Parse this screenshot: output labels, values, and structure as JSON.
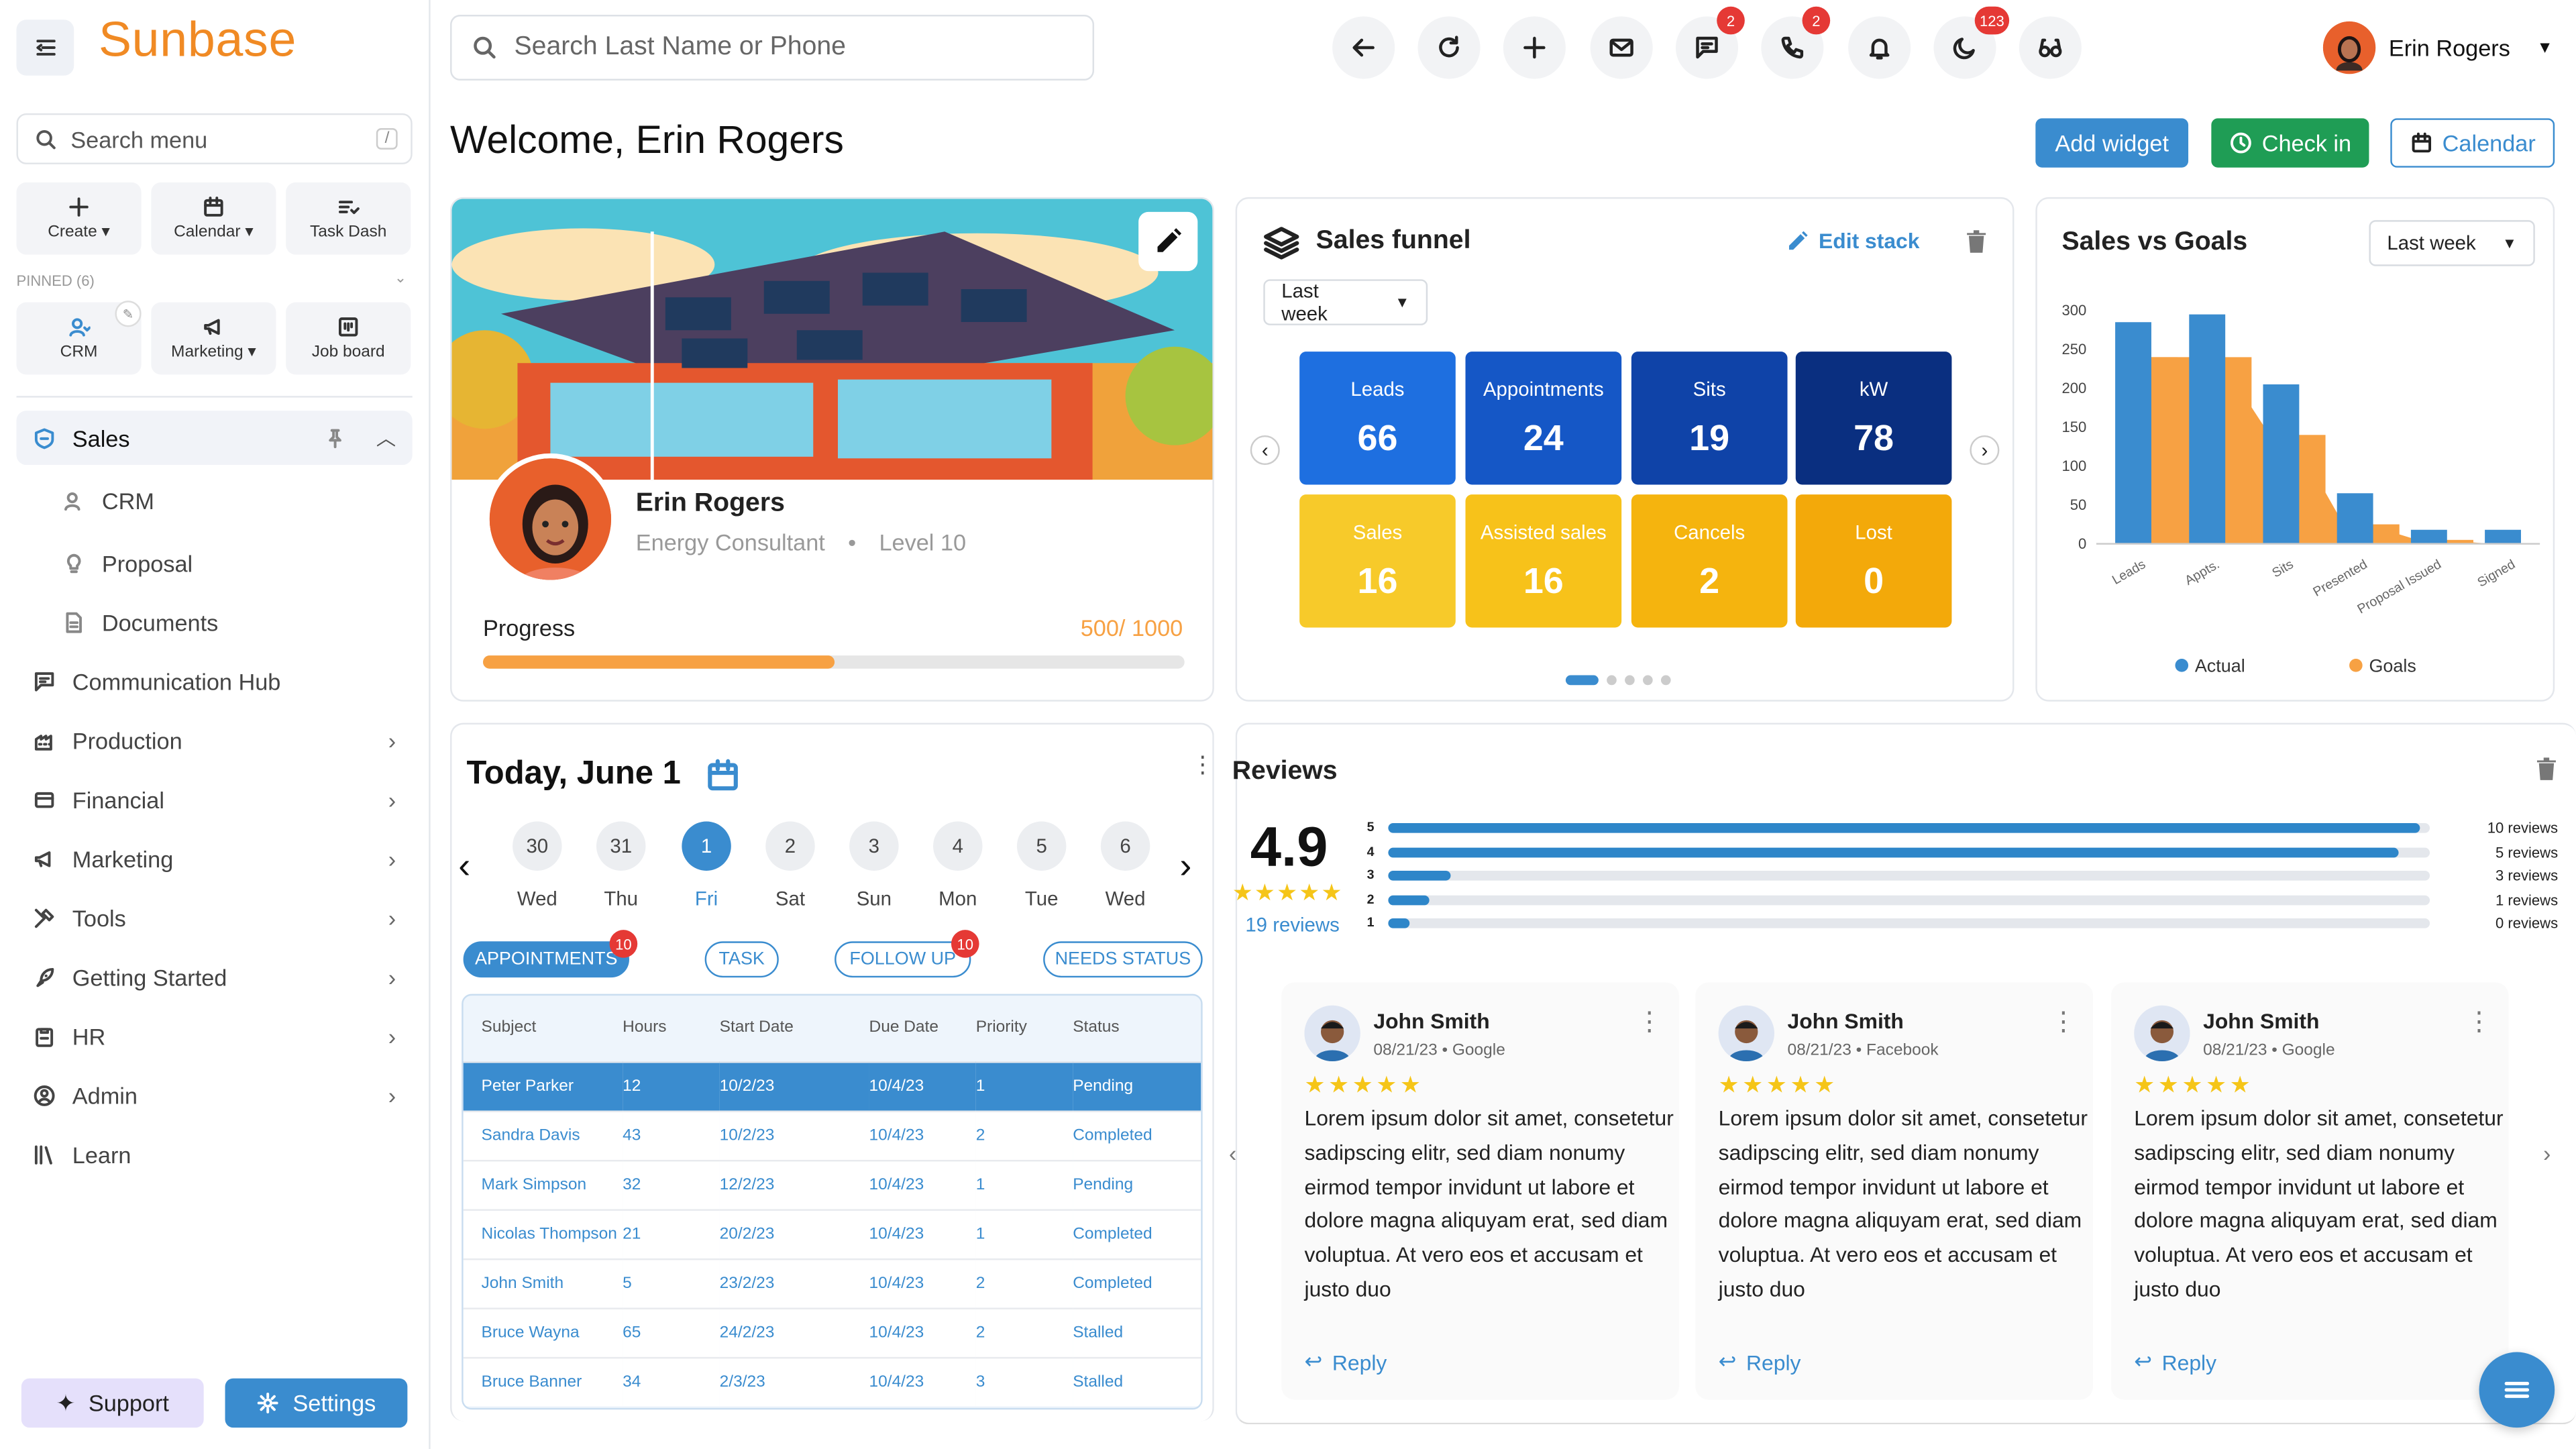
{
  "sidebar": {
    "logo": "Sunbase",
    "search_placeholder": "Search menu",
    "search_shortcut": "/",
    "quick": [
      {
        "label": "Create"
      },
      {
        "label": "Calendar"
      },
      {
        "label": "Task Dash"
      }
    ],
    "pinned_label": "PINNED (6)",
    "pinned": [
      {
        "label": "CRM"
      },
      {
        "label": "Marketing"
      },
      {
        "label": "Job board"
      }
    ],
    "nav": {
      "sales": "Sales",
      "crm": "CRM",
      "proposal": "Proposal",
      "documents": "Documents",
      "communication": "Communication Hub",
      "production": "Production",
      "financial": "Financial",
      "marketing": "Marketing",
      "tools": "Tools",
      "getting_started": "Getting Started",
      "hr": "HR",
      "admin": "Admin",
      "learn": "Learn"
    },
    "support": "Support",
    "settings": "Settings"
  },
  "header": {
    "search_placeholder": "Search Last Name or Phone",
    "badges": {
      "messages": "2",
      "calls": "2",
      "moon": "123"
    },
    "user_name": "Erin Rogers"
  },
  "page": {
    "welcome": "Welcome, Erin Rogers",
    "add_widget": "Add widget",
    "check_in": "Check in",
    "calendar": "Calendar"
  },
  "profile": {
    "name": "Erin Rogers",
    "role": "Energy Consultant",
    "level": "Level 10",
    "progress_label": "Progress",
    "progress_value": "500/ 1000",
    "progress_fraction": 0.5
  },
  "funnel": {
    "title": "Sales funnel",
    "edit": "Edit stack",
    "period": "Last week",
    "tiles": [
      {
        "label": "Leads",
        "value": "66",
        "color": "#1e6fe0"
      },
      {
        "label": "Appointments",
        "value": "24",
        "color": "#1557c6"
      },
      {
        "label": "Sits",
        "value": "19",
        "color": "#0f43a8"
      },
      {
        "label": "kW",
        "value": "78",
        "color": "#0a2f80"
      },
      {
        "label": "Sales",
        "value": "16",
        "color": "#f7ca2a"
      },
      {
        "label": "Assisted sales",
        "value": "16",
        "color": "#f7c21a"
      },
      {
        "label": "Cancels",
        "value": "2",
        "color": "#f5b40e"
      },
      {
        "label": "Lost",
        "value": "0",
        "color": "#f3a90a"
      }
    ]
  },
  "chart_data": {
    "type": "bar",
    "title": "Sales vs Goals",
    "period": "Last week",
    "categories": [
      "Leads",
      "Appts.",
      "Sits",
      "Presented",
      "Proposal Issued",
      "Signed"
    ],
    "series": [
      {
        "name": "Actual",
        "values": [
          285,
          295,
          205,
          65,
          18,
          18
        ],
        "color": "#3a8ccf"
      },
      {
        "name": "Goals",
        "values": [
          240,
          240,
          140,
          25,
          5,
          0
        ],
        "color": "#f7a143"
      }
    ],
    "yticks": [
      "0",
      "50",
      "100",
      "150",
      "200",
      "250",
      "300"
    ],
    "ylim": [
      0,
      300
    ],
    "legend": "bottom"
  },
  "calendar_widget": {
    "title": "Today, June 1",
    "days": [
      {
        "n": "30",
        "w": "Wed"
      },
      {
        "n": "31",
        "w": "Thu"
      },
      {
        "n": "1",
        "w": "Fri"
      },
      {
        "n": "2",
        "w": "Sat"
      },
      {
        "n": "3",
        "w": "Sun"
      },
      {
        "n": "4",
        "w": "Mon"
      },
      {
        "n": "5",
        "w": "Tue"
      },
      {
        "n": "6",
        "w": "Wed"
      }
    ],
    "chips": [
      {
        "label": "APPOINTMENTS",
        "badge": "10"
      },
      {
        "label": "TASK"
      },
      {
        "label": "FOLLOW UP",
        "badge": "10"
      },
      {
        "label": "NEEDS STATUS"
      }
    ],
    "columns": [
      "Subject",
      "Hours",
      "Start Date",
      "Due Date",
      "Priority",
      "Status"
    ],
    "rows": [
      [
        "Peter Parker",
        "12",
        "10/2/23",
        "10/4/23",
        "1",
        "Pending"
      ],
      [
        "Sandra Davis",
        "43",
        "10/2/23",
        "10/4/23",
        "2",
        "Completed"
      ],
      [
        "Mark Simpson",
        "32",
        "12/2/23",
        "10/4/23",
        "1",
        "Pending"
      ],
      [
        "Nicolas Thompson",
        "21",
        "20/2/23",
        "10/4/23",
        "1",
        "Completed"
      ],
      [
        "John Smith",
        "5",
        "23/2/23",
        "10/4/23",
        "2",
        "Completed"
      ],
      [
        "Bruce Wayna",
        "65",
        "24/2/23",
        "10/4/23",
        "2",
        "Stalled"
      ],
      [
        "Bruce Banner",
        "34",
        "2/3/23",
        "10/4/23",
        "3",
        "Stalled"
      ]
    ]
  },
  "reviews": {
    "title": "Reviews",
    "rating": "4.9",
    "stars": "★★★★★",
    "count": "19 reviews",
    "distribution": [
      {
        "star": "5",
        "fraction": 0.99,
        "label": "10 reviews"
      },
      {
        "star": "4",
        "fraction": 0.97,
        "label": "5 reviews"
      },
      {
        "star": "3",
        "fraction": 0.06,
        "label": "3 reviews"
      },
      {
        "star": "2",
        "fraction": 0.04,
        "label": "1 reviews"
      },
      {
        "star": "1",
        "fraction": 0.02,
        "label": "0 reviews"
      }
    ],
    "cards": [
      {
        "name": "John Smith",
        "meta": "08/21/23  •  Google",
        "stars": "★★★★★",
        "text": "Lorem ipsum dolor sit amet, consetetur sadipscing elitr, sed diam nonumy eirmod tempor invidunt ut labore et dolore magna aliquyam erat, sed diam voluptua. At vero eos et accusam et justo duo",
        "reply": "Reply"
      },
      {
        "name": "John Smith",
        "meta": "08/21/23  •  Facebook",
        "stars": "★★★★★",
        "text": "Lorem ipsum dolor sit amet, consetetur sadipscing elitr, sed diam nonumy eirmod tempor invidunt ut labore et dolore magna aliquyam erat, sed diam voluptua. At vero eos et accusam et justo duo",
        "reply": "Reply"
      },
      {
        "name": "John Smith",
        "meta": "08/21/23  •  Google",
        "stars": "★★★★★",
        "text": "Lorem ipsum dolor sit amet, consetetur sadipscing elitr, sed diam nonumy eirmod tempor invidunt ut labore et dolore magna aliquyam erat, sed diam voluptua. At vero eos et accusam et justo duo",
        "reply": "Reply"
      }
    ]
  }
}
